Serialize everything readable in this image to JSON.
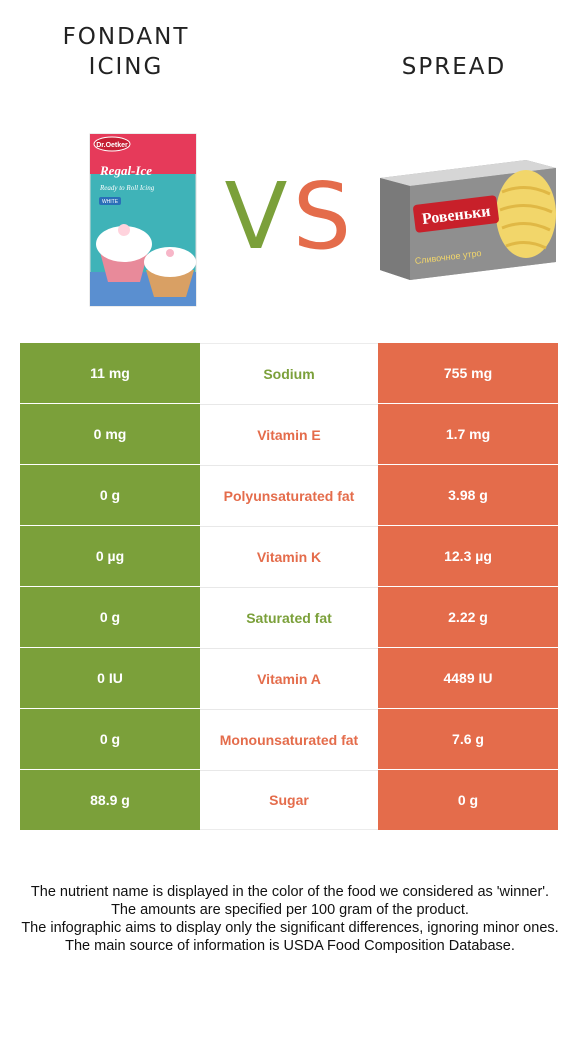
{
  "left_food": {
    "title_lines": [
      "FONDANT",
      "ICING"
    ],
    "color": "#7ba03a",
    "package": {
      "brand": "Dr.Oetker",
      "product": "Regal-Ice",
      "tagline": "Ready to Roll Icing",
      "variant": "WHITE"
    }
  },
  "right_food": {
    "title_lines": [
      "SPREAD"
    ],
    "color": "#e46c4b",
    "package": {
      "brand": "Ровеньки",
      "product": "Сливочное утро"
    }
  },
  "vs_text": {
    "v": "V",
    "s": "S"
  },
  "rows": [
    {
      "nutrient": "Sodium",
      "left": "11 mg",
      "right": "755 mg",
      "winner_color": "#7ba03a"
    },
    {
      "nutrient": "Vitamin E",
      "left": "0 mg",
      "right": "1.7 mg",
      "winner_color": "#e46c4b"
    },
    {
      "nutrient": "Polyunsaturated fat",
      "left": "0 g",
      "right": "3.98 g",
      "winner_color": "#e46c4b"
    },
    {
      "nutrient": "Vitamin K",
      "left": "0 µg",
      "right": "12.3 µg",
      "winner_color": "#e46c4b"
    },
    {
      "nutrient": "Saturated fat",
      "left": "0 g",
      "right": "2.22 g",
      "winner_color": "#7ba03a"
    },
    {
      "nutrient": "Vitamin A",
      "left": "0 IU",
      "right": "4489 IU",
      "winner_color": "#e46c4b"
    },
    {
      "nutrient": "Monounsaturated fat",
      "left": "0 g",
      "right": "7.6 g",
      "winner_color": "#e46c4b"
    },
    {
      "nutrient": "Sugar",
      "left": "88.9 g",
      "right": "0 g",
      "winner_color": "#e46c4b"
    }
  ],
  "footnote": [
    "The nutrient name is displayed in the color of the food we considered as 'winner'.",
    "The amounts are specified per 100 gram of the product.",
    "The infographic aims to display only the significant differences, ignoring minor ones.",
    "The main source of information is USDA Food Composition Database."
  ]
}
